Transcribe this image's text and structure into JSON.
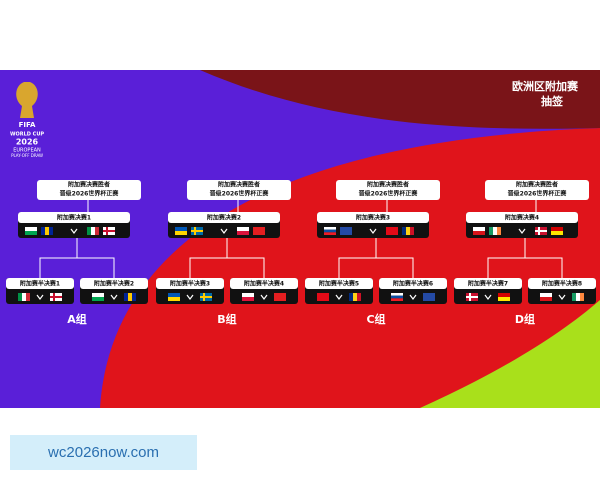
{
  "header": {
    "title_line1": "欧洲区附加赛",
    "title_line2": "抽签"
  },
  "logo": {
    "fifa": "FIFA",
    "line1": "WORLD CUP",
    "line2": "2026",
    "line3": "EUROPEAN",
    "line4": "PLAY-OFF DRAW"
  },
  "groups": [
    {
      "winner": [
        "附加赛决赛胜者",
        "晋级2026世界杯正赛"
      ],
      "final": "附加赛决赛1",
      "semis": [
        "附加赛半决赛1",
        "附加赛半决赛2"
      ],
      "label": "A组"
    },
    {
      "winner": [
        "附加赛决赛胜者",
        "晋级2026世界杯正赛"
      ],
      "final": "附加赛决赛2",
      "semis": [
        "附加赛半决赛3",
        "附加赛半决赛4"
      ],
      "label": "B组"
    },
    {
      "winner": [
        "附加赛决赛胜者",
        "晋级2026世界杯正赛"
      ],
      "final": "附加赛决赛3",
      "semis": [
        "附加赛半决赛5",
        "附加赛半决赛6"
      ],
      "label": "C组"
    },
    {
      "winner": [
        "附加赛决赛胜者",
        "晋级2026世界杯正赛"
      ],
      "final": "附加赛决赛4",
      "semis": [
        "附加赛半决赛7",
        "附加赛半决赛8"
      ],
      "label": "D组"
    }
  ],
  "footer": {
    "site": "wc2026now.com"
  }
}
